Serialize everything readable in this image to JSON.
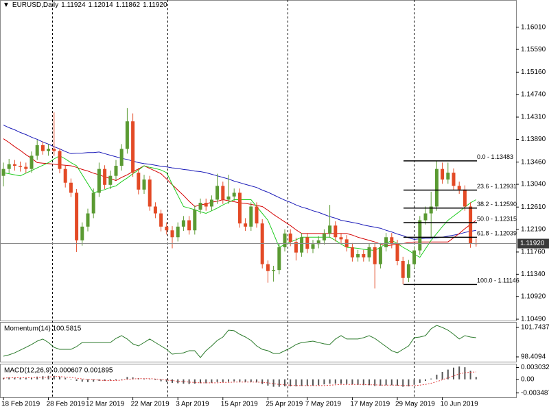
{
  "chart_data": [
    {
      "type": "candlestick",
      "title": "EURUSD,Daily",
      "header_values": [
        "1.11924",
        "1.12014",
        "1.11862",
        "1.11920"
      ],
      "categories": [
        "18 Feb 2019",
        null,
        null,
        null,
        null,
        null,
        null,
        null,
        "28 Feb 2019",
        null,
        null,
        null,
        null,
        null,
        null,
        "12 Mar 2019",
        null,
        null,
        null,
        null,
        null,
        null,
        null,
        "22 Mar 2019",
        null,
        null,
        null,
        null,
        null,
        null,
        null,
        "3 Apr 2019",
        null,
        null,
        null,
        null,
        null,
        null,
        null,
        "15 Apr 2019",
        null,
        null,
        null,
        null,
        null,
        null,
        null,
        "25 Apr 2019",
        null,
        null,
        null,
        null,
        null,
        null,
        "7 May 2019",
        null,
        null,
        null,
        null,
        null,
        null,
        null,
        "17 May 2019",
        null,
        null,
        null,
        null,
        null,
        null,
        null,
        "29 May 2019",
        null,
        null,
        null,
        null,
        null,
        null,
        null,
        "10 Jun 2019",
        null,
        null,
        null,
        null,
        null,
        null
      ],
      "open": [
        1.132,
        1.1333,
        1.1342,
        1.1339,
        1.1337,
        1.1333,
        1.1358,
        1.1378,
        1.1367,
        1.1371,
        1.1367,
        1.1333,
        1.1307,
        1.1288,
        1.1198,
        1.1224,
        1.1249,
        1.1288,
        1.1333,
        1.1303,
        1.132,
        1.1339,
        1.1371,
        1.1423,
        1.1326,
        1.1294,
        1.1313,
        1.1262,
        1.1249,
        1.1224,
        1.1217,
        1.1204,
        1.1224,
        1.1236,
        1.1217,
        1.1256,
        1.1269,
        1.1262,
        1.1275,
        1.1301,
        1.1275,
        1.1281,
        1.1288,
        1.123,
        1.1224,
        1.1262,
        1.123,
        1.1153,
        1.114,
        1.1142,
        1.1185,
        1.1211,
        1.1195,
        1.1175,
        1.1204,
        1.1182,
        1.1191,
        1.1198,
        1.1211,
        1.1226,
        1.1204,
        1.12,
        1.1185,
        1.1166,
        1.1172,
        1.1166,
        1.1185,
        1.1153,
        1.1185,
        1.1204,
        1.1191,
        1.1159,
        1.1127,
        1.1153,
        1.1179,
        1.1236,
        1.1249,
        1.1262,
        1.1333,
        1.1313,
        1.1326,
        1.1301,
        1.1294,
        1.1262,
        1.11924
      ],
      "high": [
        1.1345,
        1.1352,
        1.135,
        1.1347,
        1.1345,
        1.1366,
        1.1388,
        1.1385,
        1.138,
        1.144,
        1.1372,
        1.134,
        1.1315,
        1.1295,
        1.1232,
        1.1258,
        1.1296,
        1.1345,
        1.134,
        1.133,
        1.135,
        1.138,
        1.1448,
        1.1438,
        1.1335,
        1.1322,
        1.132,
        1.127,
        1.1256,
        1.1232,
        1.1225,
        1.1232,
        1.1244,
        1.1244,
        1.1264,
        1.1277,
        1.1277,
        1.1283,
        1.1324,
        1.1309,
        1.1322,
        1.1296,
        1.1296,
        1.124,
        1.127,
        1.127,
        1.1238,
        1.116,
        1.115,
        1.1193,
        1.1219,
        1.1219,
        1.1203,
        1.1212,
        1.1212,
        1.1199,
        1.1206,
        1.1219,
        1.1265,
        1.1234,
        1.1212,
        1.1208,
        1.1193,
        1.118,
        1.118,
        1.1193,
        1.1193,
        1.1193,
        1.1212,
        1.1212,
        1.1199,
        1.1167,
        1.1161,
        1.1187,
        1.1244,
        1.1262,
        1.129,
        1.1348,
        1.1345,
        1.1345,
        1.1334,
        1.1309,
        1.1302,
        1.127,
        1.12014
      ],
      "low": [
        1.13,
        1.1325,
        1.133,
        1.1328,
        1.1325,
        1.1326,
        1.135,
        1.136,
        1.1358,
        1.1358,
        1.1325,
        1.1298,
        1.128,
        1.1176,
        1.1188,
        1.1215,
        1.124,
        1.128,
        1.1295,
        1.1295,
        1.1312,
        1.133,
        1.1362,
        1.1318,
        1.1285,
        1.1286,
        1.1254,
        1.124,
        1.1215,
        1.1209,
        1.1183,
        1.1196,
        1.1216,
        1.1209,
        1.1209,
        1.1248,
        1.1254,
        1.1254,
        1.1267,
        1.1267,
        1.1267,
        1.1273,
        1.1222,
        1.1216,
        1.1216,
        1.1222,
        1.1145,
        1.1118,
        1.112,
        1.1134,
        1.1177,
        1.1187,
        1.116,
        1.1167,
        1.1174,
        1.1174,
        1.1183,
        1.119,
        1.1203,
        1.1196,
        1.1192,
        1.1177,
        1.1158,
        1.1158,
        1.1158,
        1.1158,
        1.1107,
        1.1145,
        1.1177,
        1.1183,
        1.1151,
        1.1115,
        1.1119,
        1.1145,
        1.1171,
        1.1228,
        1.1205,
        1.1254,
        1.1305,
        1.1305,
        1.1293,
        1.1286,
        1.1254,
        1.1184,
        1.11862
      ],
      "close": [
        1.1333,
        1.1342,
        1.1339,
        1.1337,
        1.1333,
        1.1358,
        1.1378,
        1.1367,
        1.1371,
        1.1367,
        1.1333,
        1.1307,
        1.1288,
        1.1198,
        1.1224,
        1.1249,
        1.1288,
        1.1333,
        1.1303,
        1.132,
        1.1339,
        1.1371,
        1.1423,
        1.1326,
        1.1294,
        1.1313,
        1.1262,
        1.1249,
        1.1224,
        1.1217,
        1.1204,
        1.1224,
        1.1236,
        1.1217,
        1.1256,
        1.1269,
        1.1262,
        1.1275,
        1.1301,
        1.1275,
        1.1281,
        1.1288,
        1.123,
        1.1224,
        1.1262,
        1.123,
        1.1153,
        1.114,
        1.1142,
        1.1185,
        1.1211,
        1.1195,
        1.1175,
        1.1204,
        1.1182,
        1.1191,
        1.1198,
        1.1211,
        1.1226,
        1.1204,
        1.12,
        1.1185,
        1.1166,
        1.1172,
        1.1166,
        1.1185,
        1.1153,
        1.1185,
        1.1204,
        1.1191,
        1.1159,
        1.1127,
        1.1153,
        1.1179,
        1.1236,
        1.1249,
        1.1262,
        1.1333,
        1.1313,
        1.1326,
        1.1301,
        1.1294,
        1.1262,
        1.1192,
        1.1192
      ],
      "up_color": "#5a9a32",
      "down_color": "#e34a26",
      "series": [
        {
          "color": "#1a1ab8",
          "values": [
            1.1416,
            1.1411,
            1.1407,
            1.1402,
            1.1398,
            1.1393,
            1.1389,
            1.1384,
            1.138,
            1.1375,
            1.1371,
            1.1366,
            1.1362,
            1.1363,
            1.1363,
            1.1364,
            1.1364,
            1.1365,
            1.1362,
            1.1359,
            1.1356,
            1.1353,
            1.1351,
            1.1348,
            1.1345,
            1.1343,
            1.1342,
            1.134,
            1.1338,
            1.1337,
            1.1335,
            1.1334,
            1.1332,
            1.1331,
            1.1329,
            1.1328,
            1.1326,
            1.1323,
            1.132,
            1.1317,
            1.1314,
            1.131,
            1.1307,
            1.1304,
            1.1301,
            1.1298,
            1.1293,
            1.1289,
            1.1284,
            1.1279,
            1.1274,
            1.127,
            1.1265,
            1.1261,
            1.1258,
            1.1254,
            1.1251,
            1.1247,
            1.1243,
            1.124,
            1.1236,
            1.1234,
            1.1232,
            1.123,
            1.1227,
            1.1225,
            1.1223,
            1.1221,
            1.1217,
            1.1214,
            1.121,
            1.1207,
            1.1203,
            1.12,
            1.1201,
            1.1202,
            1.1202,
            1.1203,
            1.1204,
            1.1206,
            1.1208,
            1.121,
            1.1213,
            1.1215,
            1.1217
          ]
        },
        {
          "color": "#d40000",
          "values": [
            1.139,
            1.1383,
            1.1375,
            1.1368,
            1.136,
            1.1353,
            1.1345,
            1.1344,
            1.1343,
            1.1342,
            1.1341,
            1.134,
            1.1339,
            1.1336,
            1.1332,
            1.1329,
            1.1325,
            1.1322,
            1.1318,
            1.1315,
            1.1311,
            1.1317,
            1.1322,
            1.1328,
            1.1333,
            1.1339,
            1.1334,
            1.1329,
            1.1324,
            1.1314,
            1.1303,
            1.1293,
            1.1283,
            1.1272,
            1.1262,
            1.1265,
            1.1267,
            1.127,
            1.1272,
            1.1275,
            1.1273,
            1.1271,
            1.1269,
            1.1268,
            1.1266,
            1.1264,
            1.1262,
            1.1255,
            1.1247,
            1.124,
            1.1233,
            1.1226,
            1.1218,
            1.1211,
            1.1211,
            1.1211,
            1.1211,
            1.1211,
            1.1211,
            1.1211,
            1.1211,
            1.1211,
            1.1208,
            1.1204,
            1.1201,
            1.1198,
            1.1195,
            1.1191,
            1.1188,
            1.1189,
            1.1191,
            1.1192,
            1.1194,
            1.1195,
            1.1195,
            1.1195,
            1.1195,
            1.1195,
            1.1195,
            1.1195,
            1.1203,
            1.1211,
            1.122,
            1.1228,
            1.1236
          ]
        },
        {
          "color": "#1fcc1f",
          "values": [
            1.1326,
            1.1324,
            1.1322,
            1.132,
            1.1325,
            1.133,
            1.1335,
            1.134,
            1.1345,
            1.1352,
            1.1358,
            1.1352,
            1.1345,
            1.1339,
            1.1322,
            1.1305,
            1.1288,
            1.1291,
            1.1294,
            1.1298,
            1.1301,
            1.1309,
            1.1316,
            1.1324,
            1.1331,
            1.1339,
            1.1336,
            1.1334,
            1.1331,
            1.1326,
            1.1304,
            1.1283,
            1.1262,
            1.1259,
            1.1256,
            1.1252,
            1.1249,
            1.1254,
            1.1259,
            1.1265,
            1.127,
            1.1275,
            1.1275,
            1.1275,
            1.1275,
            1.1262,
            1.1249,
            1.1236,
            1.1211,
            1.1185,
            1.119,
            1.1195,
            1.1199,
            1.1204,
            1.1204,
            1.1204,
            1.1204,
            1.1204,
            1.1204,
            1.1198,
            1.1191,
            1.1185,
            1.1184,
            1.1183,
            1.1181,
            1.118,
            1.1179,
            1.1185,
            1.1192,
            1.1198,
            1.1192,
            1.1185,
            1.1179,
            1.1172,
            1.1166,
            1.1182,
            1.1198,
            1.1211,
            1.1224,
            1.1236,
            1.1244,
            1.1252,
            1.1261,
            1.1269,
            1.1275
          ]
        }
      ],
      "fib_levels": [
        {
          "value": 1.13483,
          "label": "0.0 - 1.13483"
        },
        {
          "value": 1.12931,
          "label": "23.6 - 1.12931"
        },
        {
          "value": 1.1259,
          "label": "38.2 - 1.12590"
        },
        {
          "value": 1.12315,
          "label": "50.0 - 1.12315"
        },
        {
          "value": 1.12039,
          "label": "61.8 - 1.12039"
        },
        {
          "value": 1.11146,
          "label": "100.0 - 1.11146"
        }
      ],
      "last_price": {
        "value": 1.1192,
        "label": "1.11920"
      },
      "ylim": [
        1.10464,
        1.16472
      ],
      "yticks": [
        {
          "value": 1.1601,
          "label": "1.16010"
        },
        {
          "value": 1.1559,
          "label": "1.15590"
        },
        {
          "value": 1.1516,
          "label": "1.15160"
        },
        {
          "value": 1.1474,
          "label": "1.14740"
        },
        {
          "value": 1.1431,
          "label": "1.14310"
        },
        {
          "value": 1.1389,
          "label": "1.13890"
        },
        {
          "value": 1.1346,
          "label": "1.13460"
        },
        {
          "value": 1.1304,
          "label": "1.13040"
        },
        {
          "value": 1.1261,
          "label": "1.12610"
        },
        {
          "value": 1.1219,
          "label": "1.12190"
        },
        {
          "value": 1.1176,
          "label": "1.11760"
        },
        {
          "value": 1.1134,
          "label": "1.11340"
        },
        {
          "value": 1.1092,
          "label": "1.10920"
        },
        {
          "value": 1.1049,
          "label": "1.10490"
        }
      ]
    },
    {
      "type": "line",
      "title": "Momentum(14) 100.5815",
      "color": "#2b7a2b",
      "values": [
        98.49,
        98.64,
        98.87,
        99.18,
        99.49,
        99.81,
        100.19,
        100.43,
        100.04,
        99.49,
        99.26,
        99.26,
        99.26,
        99.57,
        100.04,
        100.04,
        100.04,
        100.04,
        100.04,
        100.04,
        100.5,
        100.81,
        100.43,
        99.88,
        99.65,
        100.04,
        100.43,
        100.04,
        99.65,
        99.26,
        98.72,
        98.8,
        98.87,
        99.11,
        99.11,
        98.33,
        99.11,
        99.65,
        100.27,
        100.66,
        101.43,
        101.36,
        100.97,
        100.66,
        100.27,
        99.65,
        99.26,
        99.11,
        98.8,
        98.8,
        99.11,
        99.42,
        99.81,
        100.04,
        100.11,
        100.19,
        100.04,
        99.88,
        99.81,
        100.43,
        100.81,
        100.43,
        100.43,
        100.43,
        100.58,
        100.81,
        100.5,
        100.04,
        99.57,
        99.11,
        98.87,
        99.26,
        99.65,
        100.58,
        100.66,
        100.81,
        101.59,
        101.98,
        101.74,
        101.43,
        100.97,
        100.43,
        100.81,
        100.66,
        100.5815
      ],
      "ylim": [
        97.867,
        102.364
      ],
      "yticks": [
        101.7437,
        98.4094
      ]
    },
    {
      "type": "macd",
      "title": "MACD(12,26,9) 0.000607 0.001895",
      "color": "#555555",
      "signal_color": "#e04040",
      "values": [
        0.0004,
        0.0005,
        0.0005,
        0.0004,
        0.0004,
        0.0005,
        0.0007,
        0.0008,
        0.0009,
        0.0009,
        0.0007,
        0.0004,
        0.0001,
        -0.0004,
        -0.0006,
        -0.0007,
        -0.0006,
        -0.0004,
        -0.0004,
        -0.0003,
        -0.0002,
        0.0001,
        0.0006,
        0.0005,
        0.0003,
        0.0002,
        0.0,
        -0.0002,
        -0.0005,
        -0.0007,
        -0.0009,
        -0.001,
        -0.0011,
        -0.0012,
        -0.0011,
        -0.001,
        -0.001,
        -0.0009,
        -0.0007,
        -0.0007,
        -0.0006,
        -0.0005,
        -0.0006,
        -0.0007,
        -0.0007,
        -0.0008,
        -0.0012,
        -0.0016,
        -0.0019,
        -0.0019,
        -0.0018,
        -0.0018,
        -0.0018,
        -0.0017,
        -0.0017,
        -0.0016,
        -0.0015,
        -0.0013,
        -0.0011,
        -0.0011,
        -0.0011,
        -0.0012,
        -0.0013,
        -0.0014,
        -0.0015,
        -0.0015,
        -0.0017,
        -0.0016,
        -0.0015,
        -0.0015,
        -0.0016,
        -0.0019,
        -0.0018,
        -0.0014,
        -0.0009,
        -0.0004,
        0.0002,
        0.0012,
        0.0019,
        0.0025,
        0.003,
        0.0033,
        0.0031,
        0.0022,
        0.000607
      ],
      "signal": [
        0.0003,
        0.0004,
        0.0004,
        0.0004,
        0.0004,
        0.0004,
        0.0005,
        0.0005,
        0.0006,
        0.0007,
        0.0007,
        0.0006,
        0.0005,
        0.0003,
        0.0001,
        0.0,
        -0.0001,
        -0.0002,
        -0.0003,
        -0.0003,
        -0.0003,
        -0.0002,
        0.0,
        0.0001,
        0.0002,
        0.0002,
        0.0002,
        0.0001,
        0.0,
        -0.0002,
        -0.0003,
        -0.0005,
        -0.0006,
        -0.0007,
        -0.0008,
        -0.0009,
        -0.0009,
        -0.0009,
        -0.0009,
        -0.0008,
        -0.0008,
        -0.0007,
        -0.0007,
        -0.0007,
        -0.0007,
        -0.0007,
        -0.0008,
        -0.0009,
        -0.0011,
        -0.0013,
        -0.0014,
        -0.0015,
        -0.0016,
        -0.0016,
        -0.0016,
        -0.0016,
        -0.0016,
        -0.0016,
        -0.0015,
        -0.0014,
        -0.0013,
        -0.0013,
        -0.0013,
        -0.0013,
        -0.0013,
        -0.0014,
        -0.0014,
        -0.0015,
        -0.0015,
        -0.0015,
        -0.0015,
        -0.0016,
        -0.0016,
        -0.0016,
        -0.0015,
        -0.0013,
        -0.001,
        -0.0006,
        -0.0001,
        0.0004,
        0.0009,
        0.0014,
        0.0017,
        0.0018,
        0.001895
      ],
      "ylim": [
        -0.0046,
        0.004
      ],
      "yticks": [
        0.003032,
        {
          "value": 0,
          "label": "0.00"
        },
        -0.003487
      ]
    }
  ]
}
